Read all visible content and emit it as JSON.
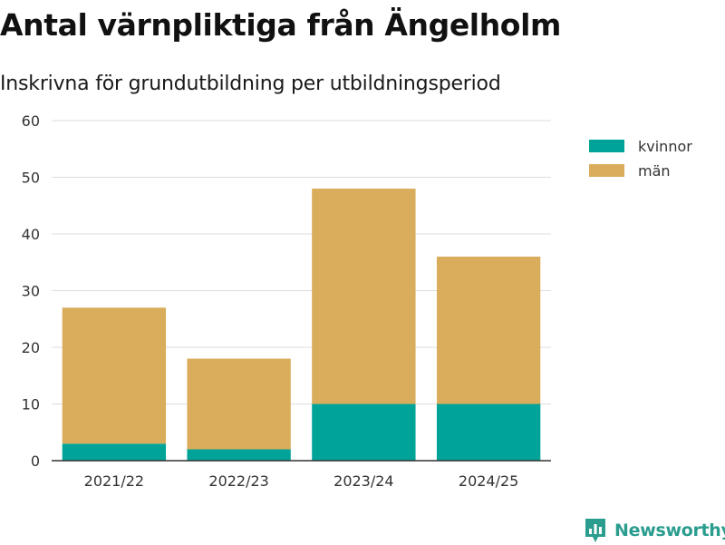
{
  "brand": {
    "name": "Newsworthy"
  },
  "chart_data": {
    "type": "bar",
    "stacked": true,
    "title": "Antal värnpliktiga från Ängelholm",
    "subtitle": "Inskrivna för grundutbildning per utbildningsperiod",
    "xlabel": "",
    "ylabel": "",
    "categories": [
      "2021/22",
      "2022/23",
      "2023/24",
      "2024/25"
    ],
    "series": [
      {
        "name": "kvinnor",
        "color": "#00a398",
        "values": [
          3,
          2,
          10,
          10
        ]
      },
      {
        "name": "män",
        "color": "#d9ad5b",
        "values": [
          24,
          16,
          38,
          26
        ]
      }
    ],
    "ylim": [
      0,
      60
    ],
    "yticks": [
      0,
      10,
      20,
      30,
      40,
      50,
      60
    ],
    "grid": true,
    "legend": "top-right"
  }
}
